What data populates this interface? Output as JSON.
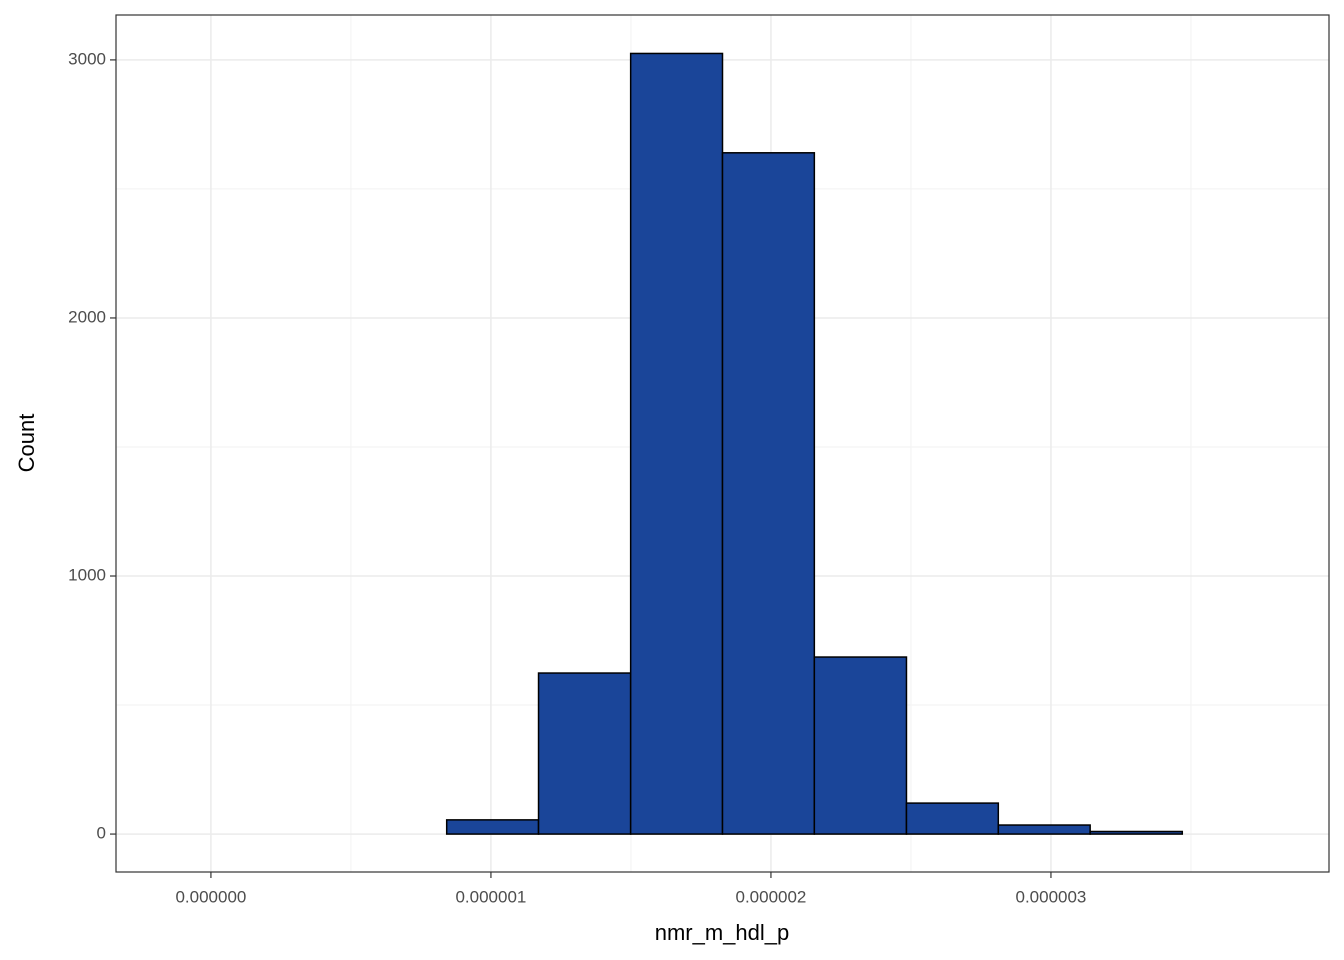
{
  "chart_data": {
    "type": "histogram",
    "x_label": "nmr_m_hdl_p",
    "y_label": "Count",
    "bins": [
      -1.43e-07,
      1.85e-07,
      5.14e-07,
      8.42e-07,
      1.17e-06,
      1.499e-06,
      1.827e-06,
      2.155e-06,
      2.484e-06,
      2.812e-06,
      3.14e-06,
      3.469e-06,
      3.797e-06
    ],
    "counts": [
      0,
      0,
      0,
      55,
      624,
      3025,
      2640,
      686,
      120,
      35,
      10,
      0
    ],
    "color": "#1a4599",
    "edge_color": "#000000",
    "xlim": [
      -3.39e-07,
      3.993e-06
    ],
    "xticks": [
      {
        "value": 0,
        "label": "0.000000"
      },
      {
        "value": 1e-06,
        "label": "0.000001"
      },
      {
        "value": 2e-06,
        "label": "0.000002"
      },
      {
        "value": 3e-06,
        "label": "0.000003"
      }
    ],
    "ylim": [
      -147,
      3174
    ],
    "yticks": [
      0,
      1000,
      2000,
      3000
    ],
    "grid": true
  }
}
